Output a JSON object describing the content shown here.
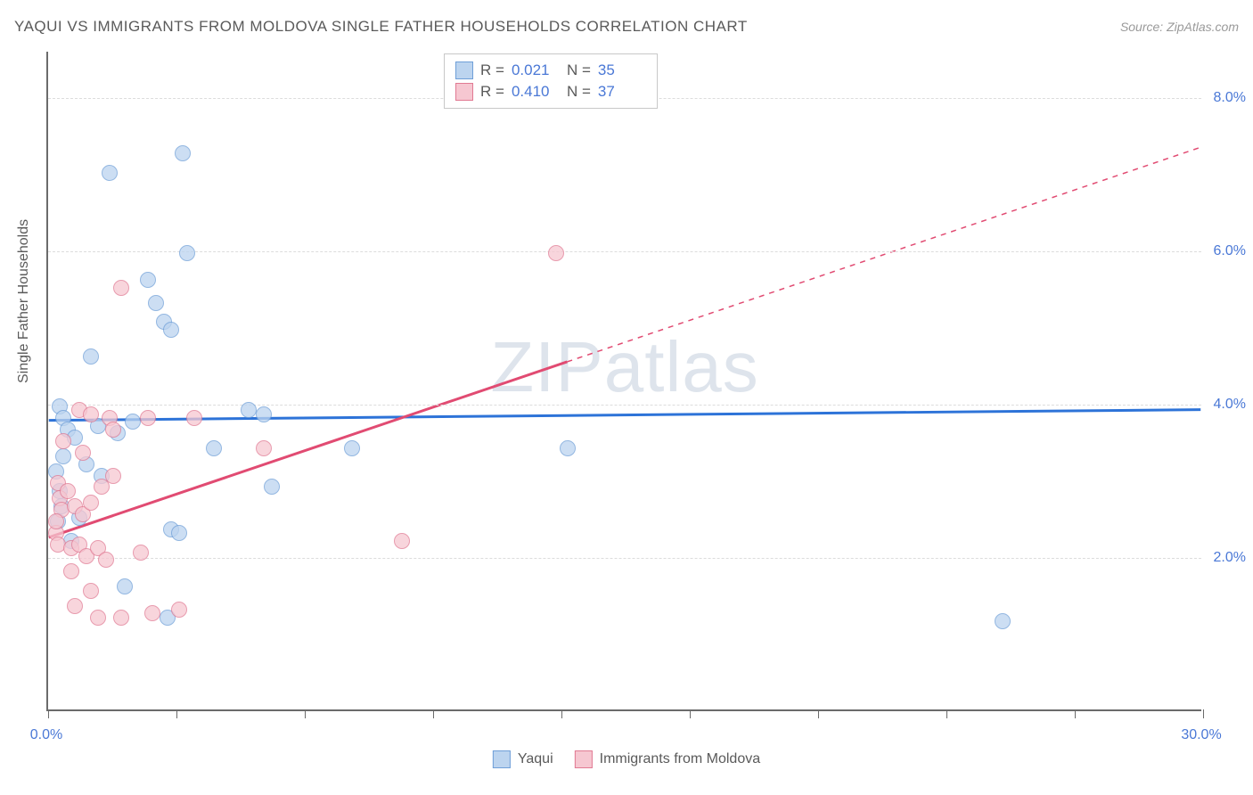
{
  "title": "YAQUI VS IMMIGRANTS FROM MOLDOVA SINGLE FATHER HOUSEHOLDS CORRELATION CHART",
  "source_label": "Source: ZipAtlas.com",
  "watermark_text": "ZIPatlas",
  "ylabel": "Single Father Households",
  "chart": {
    "type": "scatter",
    "xlim": [
      0,
      30
    ],
    "ylim": [
      0,
      8.6
    ],
    "x_ticks": [
      0,
      3.33,
      6.67,
      10,
      13.33,
      16.67,
      20,
      23.33,
      26.67,
      30
    ],
    "x_tick_labels": {
      "0": "0.0%",
      "30": "30.0%"
    },
    "y_gridlines": [
      2.0,
      4.0,
      6.0,
      8.0
    ],
    "y_tick_labels": [
      "2.0%",
      "4.0%",
      "6.0%",
      "8.0%"
    ],
    "background_color": "#ffffff",
    "grid_color": "#dcdcdc",
    "axis_color": "#6b6b6b",
    "tick_label_color": "#4a78d6",
    "label_color": "#5a5a5a",
    "title_color": "#5a5a5a",
    "marker_radius": 9,
    "series": [
      {
        "name": "Yaqui",
        "fill": "#bcd4ef",
        "stroke": "#6f9fd8",
        "fill_opacity": 0.75,
        "trend": {
          "color": "#2d73d8",
          "width": 3,
          "y_at_x0": 3.78,
          "y_at_x30": 3.92,
          "solid_until_x": 30
        },
        "stats": {
          "R": "0.021",
          "N": "35"
        },
        "points": [
          [
            1.6,
            7.0
          ],
          [
            3.5,
            7.25
          ],
          [
            3.6,
            5.95
          ],
          [
            2.6,
            5.6
          ],
          [
            2.8,
            5.3
          ],
          [
            3.0,
            5.05
          ],
          [
            3.2,
            4.95
          ],
          [
            1.1,
            4.6
          ],
          [
            5.2,
            3.9
          ],
          [
            5.6,
            3.85
          ],
          [
            0.3,
            3.95
          ],
          [
            0.4,
            3.8
          ],
          [
            0.5,
            3.65
          ],
          [
            0.7,
            3.55
          ],
          [
            1.3,
            3.7
          ],
          [
            1.8,
            3.6
          ],
          [
            4.3,
            3.4
          ],
          [
            2.2,
            3.75
          ],
          [
            0.2,
            3.1
          ],
          [
            0.3,
            2.85
          ],
          [
            1.0,
            3.2
          ],
          [
            1.4,
            3.05
          ],
          [
            5.8,
            2.9
          ],
          [
            7.9,
            3.4
          ],
          [
            0.35,
            2.65
          ],
          [
            0.25,
            2.45
          ],
          [
            3.2,
            2.35
          ],
          [
            3.4,
            2.3
          ],
          [
            2.0,
            1.6
          ],
          [
            3.1,
            1.2
          ],
          [
            0.6,
            2.2
          ],
          [
            0.8,
            2.5
          ],
          [
            24.8,
            1.15
          ],
          [
            13.5,
            3.4
          ],
          [
            0.4,
            3.3
          ]
        ]
      },
      {
        "name": "Immigrants from Moldova",
        "fill": "#f6c7d1",
        "stroke": "#e17a93",
        "fill_opacity": 0.75,
        "trend": {
          "color": "#e14b72",
          "width": 3,
          "y_at_x0": 2.25,
          "y_at_x30": 7.35,
          "solid_until_x": 13.5
        },
        "stats": {
          "R": "0.410",
          "N": "37"
        },
        "points": [
          [
            1.9,
            5.5
          ],
          [
            13.2,
            5.95
          ],
          [
            0.8,
            3.9
          ],
          [
            1.1,
            3.85
          ],
          [
            1.6,
            3.8
          ],
          [
            2.6,
            3.8
          ],
          [
            3.8,
            3.8
          ],
          [
            0.4,
            3.5
          ],
          [
            0.9,
            3.35
          ],
          [
            1.7,
            3.65
          ],
          [
            0.25,
            2.95
          ],
          [
            0.3,
            2.75
          ],
          [
            0.35,
            2.6
          ],
          [
            0.5,
            2.85
          ],
          [
            0.7,
            2.65
          ],
          [
            0.9,
            2.55
          ],
          [
            1.1,
            2.7
          ],
          [
            1.4,
            2.9
          ],
          [
            1.7,
            3.05
          ],
          [
            5.6,
            3.4
          ],
          [
            0.2,
            2.3
          ],
          [
            0.25,
            2.15
          ],
          [
            0.6,
            2.1
          ],
          [
            0.8,
            2.15
          ],
          [
            1.0,
            2.0
          ],
          [
            1.3,
            2.1
          ],
          [
            2.4,
            2.05
          ],
          [
            9.2,
            2.2
          ],
          [
            0.6,
            1.8
          ],
          [
            1.5,
            1.95
          ],
          [
            1.1,
            1.55
          ],
          [
            0.7,
            1.35
          ],
          [
            1.9,
            1.2
          ],
          [
            1.3,
            1.2
          ],
          [
            3.4,
            1.3
          ],
          [
            2.7,
            1.25
          ],
          [
            0.2,
            2.45
          ]
        ]
      }
    ]
  },
  "legend_stats_labels": {
    "R": "R =",
    "N": "N ="
  },
  "bottom_legend": [
    {
      "label": "Yaqui",
      "fill": "#bcd4ef",
      "stroke": "#6f9fd8"
    },
    {
      "label": "Immigrants from Moldova",
      "fill": "#f6c7d1",
      "stroke": "#e17a93"
    }
  ]
}
